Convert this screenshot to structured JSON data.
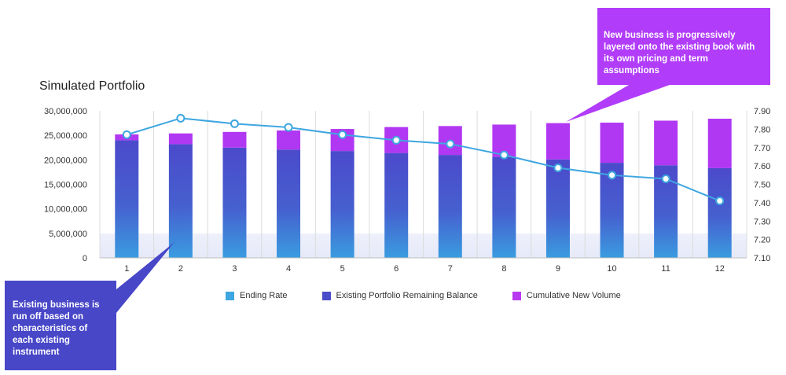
{
  "title": "Simulated Portfolio",
  "legend": [
    {
      "label": "Ending Rate",
      "color": "#3ea6e0"
    },
    {
      "label": "Existing Portfolio Remaining Balance",
      "color": "#4a4cc9"
    },
    {
      "label": "Cumulative New Volume",
      "color": "#b83af0"
    }
  ],
  "callouts": {
    "top": "New business is progressively layered onto the existing book with its own pricing and term assumptions",
    "bottom": "Existing business is run off based on characteristics of each existing instrument"
  },
  "colors": {
    "existing_top": "#4b4acb",
    "existing_bottom": "#3a9ce0",
    "new_volume": "#b138f2",
    "line": "#3ea6e0",
    "callout_top_bg": "#b13cfa",
    "callout_bottom_bg": "#4847c8"
  },
  "chart_data": {
    "type": "bar",
    "stacked": true,
    "categories": [
      "1",
      "2",
      "3",
      "4",
      "5",
      "6",
      "7",
      "8",
      "9",
      "10",
      "11",
      "12"
    ],
    "series": [
      {
        "name": "Existing Portfolio Remaining Balance",
        "axis": "left",
        "values": [
          24000000,
          23200000,
          22500000,
          22100000,
          21800000,
          21400000,
          21000000,
          20600000,
          20100000,
          19400000,
          18900000,
          18300000
        ]
      },
      {
        "name": "Cumulative New Volume",
        "axis": "left",
        "values": [
          1200000,
          2200000,
          3200000,
          3900000,
          4500000,
          5300000,
          5900000,
          6600000,
          7400000,
          8200000,
          9100000,
          10100000
        ]
      },
      {
        "name": "Ending Rate",
        "type": "line",
        "axis": "right",
        "values": [
          7.77,
          7.86,
          7.83,
          7.81,
          7.77,
          7.74,
          7.72,
          7.66,
          7.59,
          7.55,
          7.53,
          7.41
        ]
      }
    ],
    "y_left": {
      "min": 0,
      "max": 30000000,
      "ticks": [
        "0",
        "5,000,000",
        "10,000,000",
        "15,000,000",
        "20,000,000",
        "25,000,000",
        "30,000,000"
      ]
    },
    "y_right": {
      "min": 7.1,
      "max": 7.9,
      "ticks": [
        "7.10",
        "7.20",
        "7.30",
        "7.40",
        "7.50",
        "7.60",
        "7.70",
        "7.80",
        "7.90"
      ]
    },
    "grid": "vertical",
    "legend_position": "bottom"
  }
}
